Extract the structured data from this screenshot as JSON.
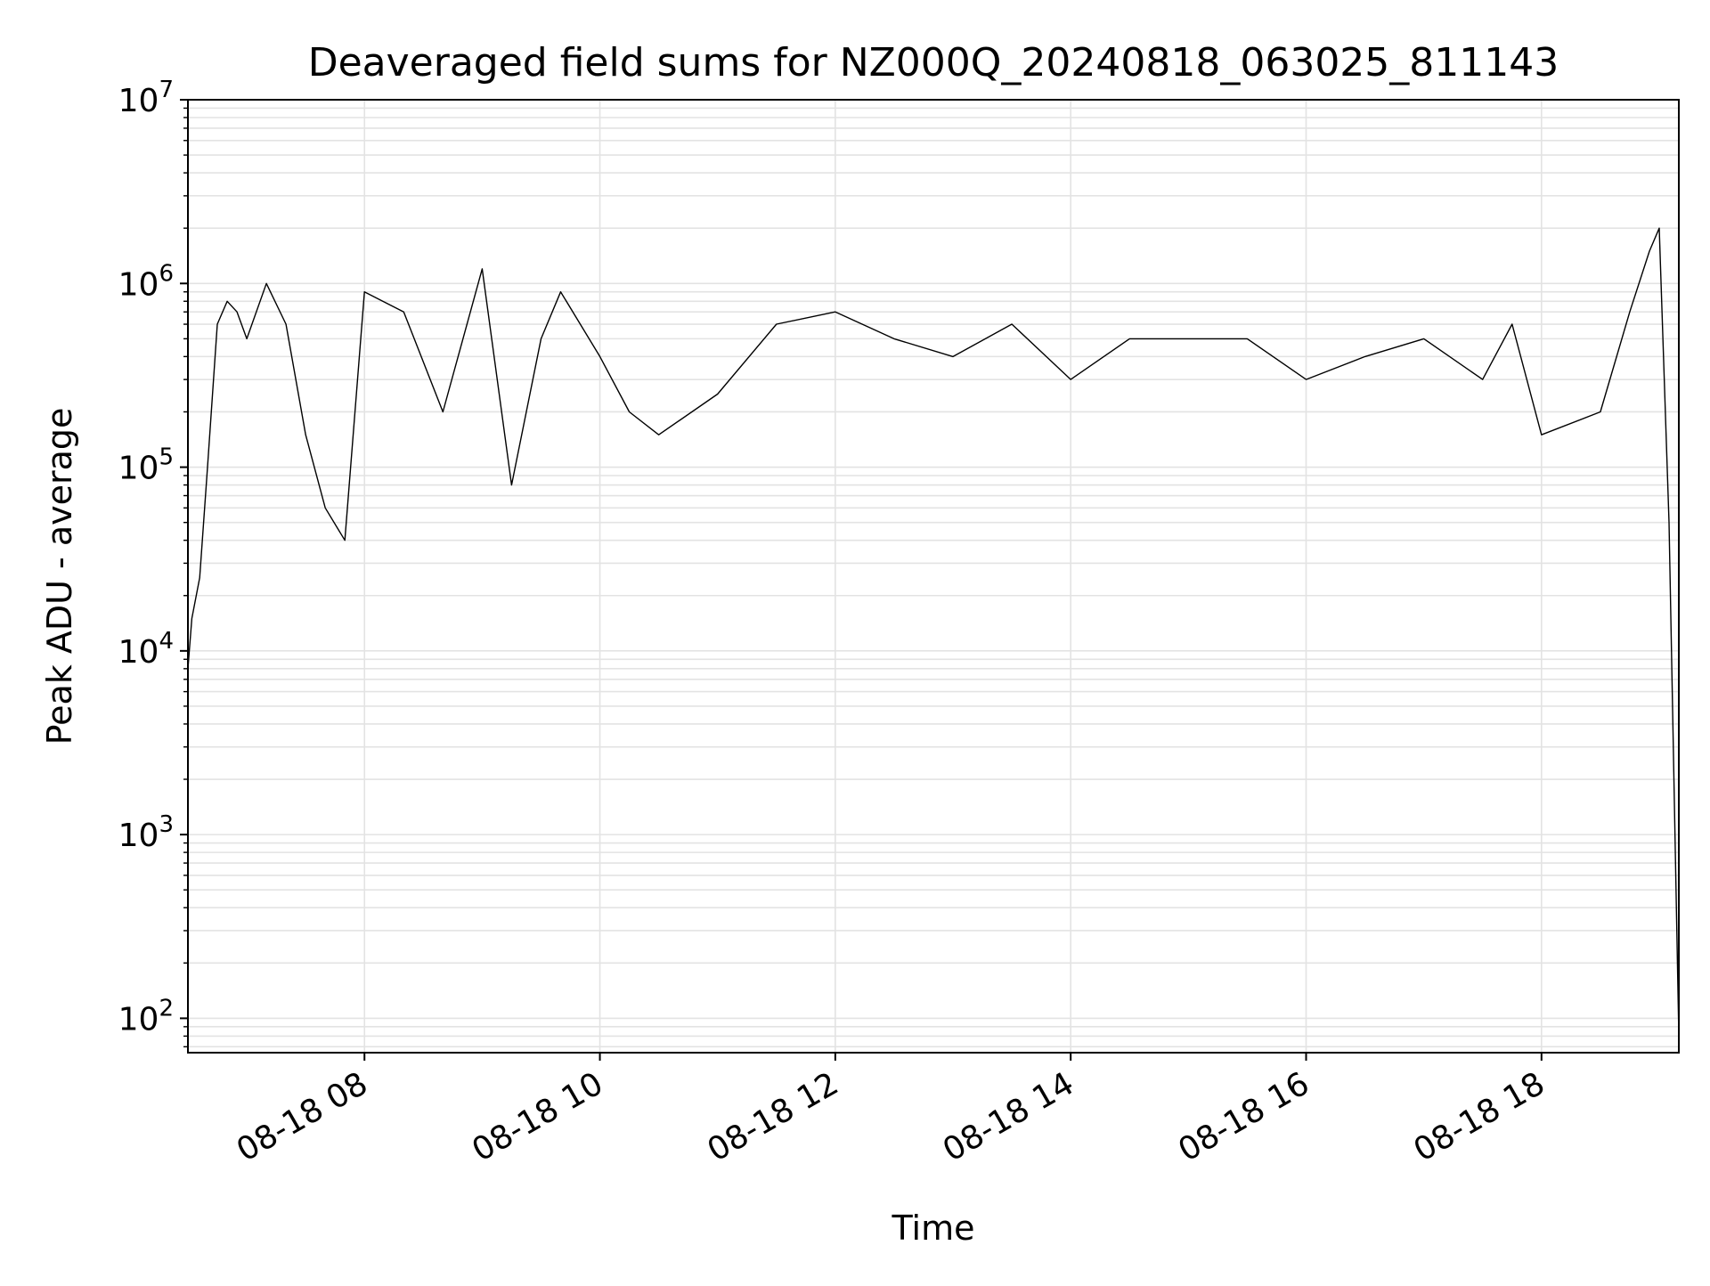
{
  "chart_data": {
    "type": "line",
    "title": "Deaveraged field sums for NZ000Q_20240818_063025_811143",
    "xlabel": "Time",
    "ylabel": "Peak ADU - average",
    "y_scale": "log",
    "ylim": [
      65,
      10000000
    ],
    "xlim": [
      "2024-08-18 06:30",
      "2024-08-18 19:10"
    ],
    "x_tick_labels": [
      "08-18 08",
      "08-18 10",
      "08-18 12",
      "08-18 14",
      "08-18 16",
      "08-18 18"
    ],
    "x_tick_values": [
      "2024-08-18 08:00",
      "2024-08-18 10:00",
      "2024-08-18 12:00",
      "2024-08-18 14:00",
      "2024-08-18 16:00",
      "2024-08-18 18:00"
    ],
    "y_tick_labels": [
      {
        "base": "10",
        "exp": "2"
      },
      {
        "base": "10",
        "exp": "3"
      },
      {
        "base": "10",
        "exp": "4"
      },
      {
        "base": "10",
        "exp": "5"
      },
      {
        "base": "10",
        "exp": "6"
      },
      {
        "base": "10",
        "exp": "7"
      }
    ],
    "y_tick_values": [
      100,
      1000,
      10000,
      100000,
      1000000,
      10000000
    ],
    "grid": true,
    "grid_color": "#e3e3e3",
    "line_color": "#000000",
    "series": [
      {
        "x": [
          "2024-08-18 06:30",
          "2024-08-18 06:32",
          "2024-08-18 06:36",
          "2024-08-18 06:40",
          "2024-08-18 06:45",
          "2024-08-18 06:50",
          "2024-08-18 06:55",
          "2024-08-18 07:00",
          "2024-08-18 07:10",
          "2024-08-18 07:20",
          "2024-08-18 07:30",
          "2024-08-18 07:40",
          "2024-08-18 07:50",
          "2024-08-18 08:00",
          "2024-08-18 08:20",
          "2024-08-18 08:40",
          "2024-08-18 09:00",
          "2024-08-18 09:15",
          "2024-08-18 09:30",
          "2024-08-18 09:40",
          "2024-08-18 10:00",
          "2024-08-18 10:15",
          "2024-08-18 10:30",
          "2024-08-18 11:00",
          "2024-08-18 11:30",
          "2024-08-18 12:00",
          "2024-08-18 12:30",
          "2024-08-18 13:00",
          "2024-08-18 13:30",
          "2024-08-18 14:00",
          "2024-08-18 14:30",
          "2024-08-18 15:00",
          "2024-08-18 15:30",
          "2024-08-18 16:00",
          "2024-08-18 16:30",
          "2024-08-18 17:00",
          "2024-08-18 17:30",
          "2024-08-18 17:45",
          "2024-08-18 18:00",
          "2024-08-18 18:30",
          "2024-08-18 18:45",
          "2024-08-18 18:55",
          "2024-08-18 19:00",
          "2024-08-18 19:05",
          "2024-08-18 19:10"
        ],
        "y": [
          8000,
          15000,
          25000,
          100000,
          600000,
          800000,
          700000,
          500000,
          1000000,
          600000,
          150000,
          60000,
          40000,
          900000,
          700000,
          200000,
          1200000,
          80000,
          500000,
          900000,
          400000,
          200000,
          150000,
          250000,
          600000,
          700000,
          500000,
          400000,
          600000,
          300000,
          500000,
          500000,
          500000,
          300000,
          400000,
          500000,
          300000,
          600000,
          150000,
          200000,
          700000,
          1500000,
          2000000,
          50000,
          80
        ]
      }
    ]
  }
}
